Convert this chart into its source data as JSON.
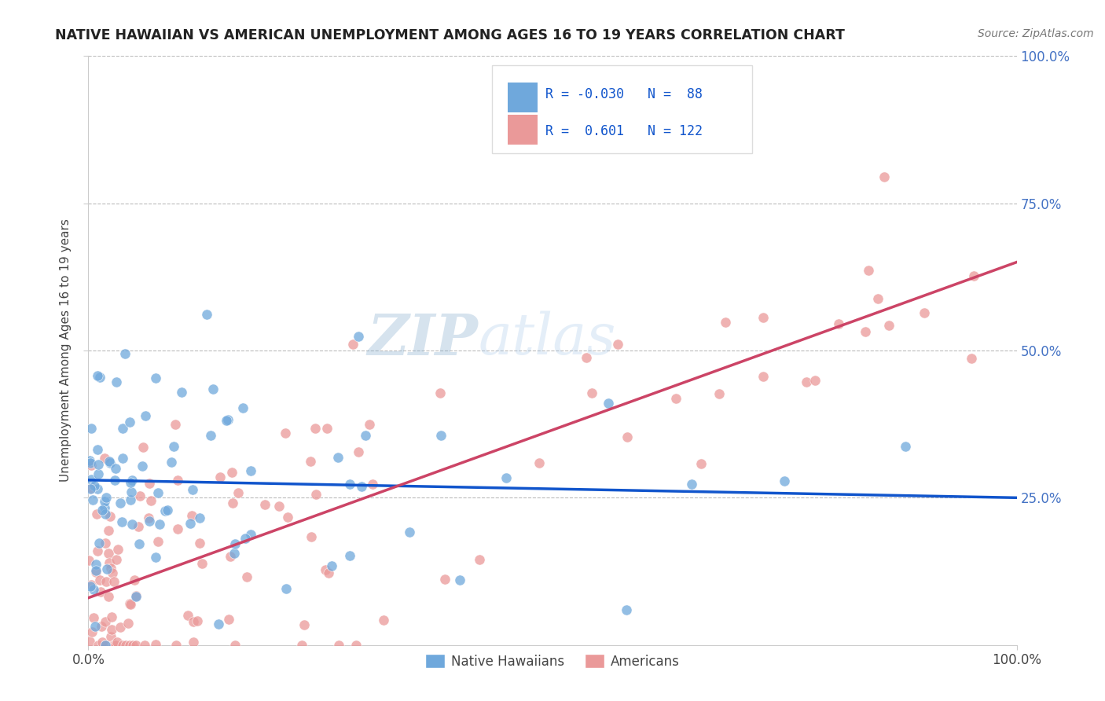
{
  "title": "NATIVE HAWAIIAN VS AMERICAN UNEMPLOYMENT AMONG AGES 16 TO 19 YEARS CORRELATION CHART",
  "source": "Source: ZipAtlas.com",
  "ylabel": "Unemployment Among Ages 16 to 19 years",
  "xlim": [
    0,
    1
  ],
  "ylim": [
    0,
    1
  ],
  "blue_color": "#6fa8dc",
  "pink_color": "#ea9999",
  "blue_line_color": "#1155cc",
  "pink_line_color": "#cc4466",
  "blue_r": -0.03,
  "blue_n": 88,
  "pink_r": 0.601,
  "pink_n": 122,
  "watermark_zip": "ZIP",
  "watermark_atlas": "atlas",
  "legend_label_blue": "Native Hawaiians",
  "legend_label_pink": "Americans",
  "blue_line": [
    0.0,
    0.28,
    1.0,
    0.25
  ],
  "pink_line": [
    0.0,
    0.08,
    1.0,
    0.65
  ]
}
